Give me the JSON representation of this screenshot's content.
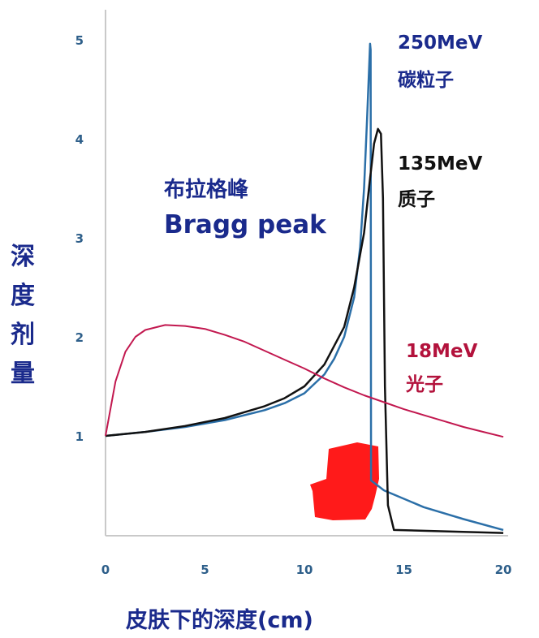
{
  "chart_data": {
    "type": "line",
    "xlabel": "皮肤下的深度(cm)",
    "ylabel": "深度剂量",
    "xlim": [
      0,
      20
    ],
    "ylim": [
      0,
      5
    ],
    "x_ticks": [
      "0",
      "5",
      "10",
      "15",
      "20"
    ],
    "y_ticks": [
      "1",
      "2",
      "3",
      "4",
      "5"
    ],
    "annotation": {
      "cn": "布拉格峰",
      "en": "Bragg peak"
    },
    "series": [
      {
        "name_line1": "250MeV",
        "name_line2": "碳粒子",
        "color": "#2b6fa8",
        "points": [
          [
            0,
            1.0
          ],
          [
            2,
            1.04
          ],
          [
            4,
            1.09
          ],
          [
            6,
            1.16
          ],
          [
            8,
            1.26
          ],
          [
            9,
            1.33
          ],
          [
            10,
            1.43
          ],
          [
            11,
            1.62
          ],
          [
            11.5,
            1.78
          ],
          [
            12,
            2.0
          ],
          [
            12.5,
            2.4
          ],
          [
            12.8,
            2.9
          ],
          [
            13.0,
            3.5
          ],
          [
            13.15,
            4.2
          ],
          [
            13.3,
            4.96
          ],
          [
            13.33,
            4.9
          ],
          [
            13.35,
            0.55
          ],
          [
            14,
            0.45
          ],
          [
            16,
            0.28
          ],
          [
            18,
            0.16
          ],
          [
            20,
            0.05
          ]
        ]
      },
      {
        "name_line1": "135MeV",
        "name_line2": "质子",
        "color": "#111111",
        "points": [
          [
            0,
            1.0
          ],
          [
            2,
            1.04
          ],
          [
            4,
            1.1
          ],
          [
            6,
            1.18
          ],
          [
            8,
            1.3
          ],
          [
            9,
            1.38
          ],
          [
            10,
            1.5
          ],
          [
            11,
            1.72
          ],
          [
            12,
            2.1
          ],
          [
            12.5,
            2.5
          ],
          [
            13,
            3.05
          ],
          [
            13.3,
            3.6
          ],
          [
            13.5,
            3.95
          ],
          [
            13.7,
            4.1
          ],
          [
            13.85,
            4.05
          ],
          [
            13.95,
            3.4
          ],
          [
            14.05,
            1.5
          ],
          [
            14.2,
            0.3
          ],
          [
            14.5,
            0.05
          ],
          [
            20,
            0.02
          ]
        ]
      },
      {
        "name_line1": "18MeV",
        "name_line2": "光子",
        "color": "#c2184f",
        "points": [
          [
            0,
            1.0
          ],
          [
            0.5,
            1.55
          ],
          [
            1,
            1.85
          ],
          [
            1.5,
            2.0
          ],
          [
            2,
            2.07
          ],
          [
            3,
            2.12
          ],
          [
            4,
            2.11
          ],
          [
            5,
            2.08
          ],
          [
            6,
            2.02
          ],
          [
            7,
            1.95
          ],
          [
            8,
            1.86
          ],
          [
            9,
            1.77
          ],
          [
            10,
            1.68
          ],
          [
            11,
            1.58
          ],
          [
            12,
            1.49
          ],
          [
            13,
            1.41
          ],
          [
            14,
            1.34
          ],
          [
            15,
            1.27
          ],
          [
            16,
            1.21
          ],
          [
            17,
            1.15
          ],
          [
            18,
            1.09
          ],
          [
            19,
            1.04
          ],
          [
            20,
            0.99
          ]
        ]
      }
    ],
    "highlight_color": "#ff1a1a"
  }
}
